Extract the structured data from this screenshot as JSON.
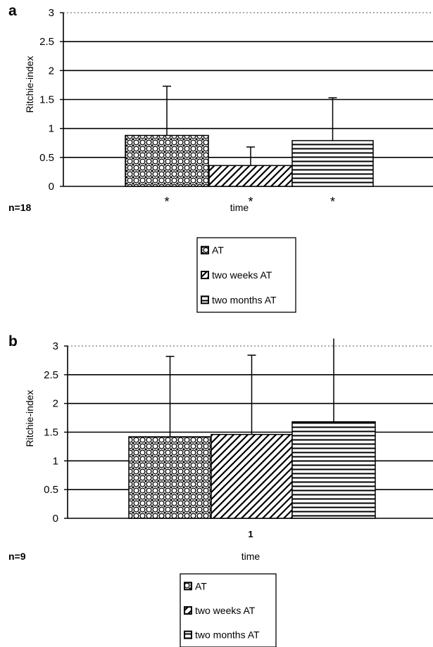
{
  "chart_data": [
    {
      "panel_label": "a",
      "type": "bar",
      "ylabel": "Ritchie-index",
      "xlabel": "time",
      "ylim": [
        0,
        3
      ],
      "yticks": [
        "0",
        "0.5",
        "1",
        "1.5",
        "2",
        "2.5",
        "3"
      ],
      "grid": true,
      "x_tick_label": "",
      "n_label": "n=18",
      "series": [
        {
          "name": "AT",
          "value": 0.88,
          "error": 0.85,
          "marker": "*",
          "pattern": "dots"
        },
        {
          "name": "two weeks AT",
          "value": 0.36,
          "error": 0.32,
          "marker": "*",
          "pattern": "diagonal"
        },
        {
          "name": "two months AT",
          "value": 0.79,
          "error": 0.74,
          "marker": "*",
          "pattern": "horizontal"
        }
      ],
      "legend_position": "bottom-center"
    },
    {
      "panel_label": "b",
      "type": "bar",
      "ylabel": "Ritchie-index",
      "xlabel": "time",
      "ylim": [
        0,
        3
      ],
      "yticks": [
        "0",
        "0.5",
        "1",
        "1.5",
        "2",
        "2.5",
        "3"
      ],
      "grid": true,
      "x_tick_label": "1",
      "n_label": "n=9",
      "series": [
        {
          "name": "AT",
          "value": 1.42,
          "error": 1.4,
          "marker": "",
          "pattern": "dots"
        },
        {
          "name": "two weeks AT",
          "value": 1.46,
          "error": 1.38,
          "marker": "",
          "pattern": "diagonal"
        },
        {
          "name": "two months AT",
          "value": 1.68,
          "error": 1.45,
          "marker": "",
          "pattern": "horizontal"
        }
      ],
      "legend_position": "bottom-center"
    }
  ]
}
